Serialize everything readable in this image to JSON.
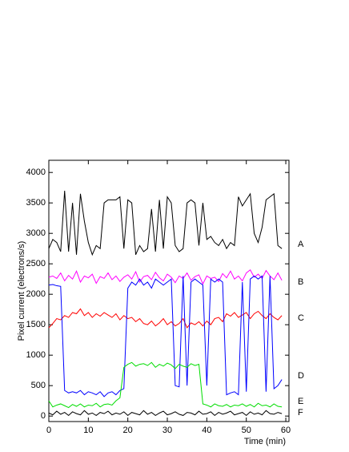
{
  "chart_data": {
    "type": "line",
    "x_label": "Time (min)",
    "y_label": "Pixel current (electrons/s)",
    "x": [
      0,
      1,
      2,
      3,
      4,
      5,
      6,
      7,
      8,
      9,
      10,
      11,
      12,
      13,
      14,
      15,
      16,
      17,
      18,
      19,
      20,
      21,
      22,
      23,
      24,
      25,
      26,
      27,
      28,
      29,
      30,
      31,
      32,
      33,
      34,
      35,
      36,
      37,
      38,
      39,
      40,
      41,
      42,
      43,
      44,
      45,
      46,
      47,
      48,
      49,
      50,
      51,
      52,
      53,
      54,
      55,
      56,
      57,
      58,
      59
    ],
    "xlim": [
      0,
      60.8
    ],
    "xticks": [
      0,
      10,
      20,
      30,
      40,
      50,
      60
    ],
    "ylim": [
      -90,
      4200
    ],
    "yticks": [
      0,
      500,
      1000,
      1500,
      2000,
      2500,
      3000,
      3500,
      4000
    ],
    "series": [
      {
        "name": "A",
        "color": "#000000",
        "values": [
          2750,
          2900,
          2850,
          2700,
          3700,
          2700,
          3500,
          2650,
          3650,
          3200,
          2850,
          2650,
          2800,
          2750,
          3500,
          3550,
          3550,
          3550,
          3600,
          2750,
          3550,
          3500,
          2650,
          2800,
          2700,
          2750,
          3400,
          2700,
          3550,
          2750,
          3600,
          3500,
          2800,
          2700,
          2750,
          3500,
          3550,
          3500,
          2800,
          3500,
          2900,
          2950,
          2850,
          2800,
          2900,
          2750,
          2850,
          2800,
          3600,
          3450,
          3550,
          3650,
          3000,
          2850,
          3100,
          3550,
          3600,
          3650,
          2800,
          2750
        ]
      },
      {
        "name": "B",
        "color": "#ff00ff",
        "values": [
          2280,
          2300,
          2260,
          2350,
          2220,
          2310,
          2250,
          2380,
          2200,
          2300,
          2270,
          2330,
          2180,
          2290,
          2260,
          2350,
          2240,
          2300,
          2210,
          2280,
          2320,
          2250,
          2370,
          2200,
          2290,
          2310,
          2240,
          2360,
          2270,
          2220,
          2330,
          2280,
          2190,
          2300,
          2260,
          2350,
          2230,
          2290,
          2320,
          2170,
          2300,
          2260,
          2280,
          2210,
          2340,
          2270,
          2380,
          2250,
          2300,
          2220,
          2350,
          2400,
          2280,
          2330,
          2260,
          2390,
          2300,
          2240,
          2350,
          2230
        ]
      },
      {
        "name": "C",
        "color": "#ff0000",
        "values": [
          1450,
          1520,
          1600,
          1580,
          1650,
          1620,
          1700,
          1680,
          1760,
          1650,
          1700,
          1620,
          1680,
          1640,
          1700,
          1660,
          1620,
          1680,
          1580,
          1650,
          1600,
          1620,
          1550,
          1600,
          1520,
          1500,
          1560,
          1480,
          1530,
          1600,
          1500,
          1550,
          1480,
          1520,
          1600,
          1450,
          1530,
          1500,
          1550,
          1480,
          1560,
          1500,
          1600,
          1620,
          1550,
          1680,
          1640,
          1700,
          1620,
          1660,
          1700,
          1600,
          1680,
          1720,
          1650,
          1600,
          1680,
          1620,
          1580,
          1650
        ]
      },
      {
        "name": "D",
        "color": "#0000ff",
        "values": [
          2150,
          2160,
          2140,
          2130,
          420,
          380,
          400,
          380,
          420,
          350,
          400,
          380,
          350,
          400,
          320,
          380,
          400,
          350,
          420,
          450,
          2100,
          2200,
          2150,
          2250,
          2150,
          2200,
          2100,
          2250,
          2200,
          2150,
          2200,
          2250,
          500,
          480,
          2300,
          500,
          2200,
          2250,
          2200,
          2150,
          500,
          2250,
          2200,
          2250,
          2200,
          350,
          380,
          400,
          350,
          2200,
          400,
          2250,
          2300,
          2250,
          2300,
          400,
          2300,
          450,
          500,
          600
        ]
      },
      {
        "name": "E",
        "color": "#00dd00",
        "values": [
          250,
          150,
          180,
          200,
          170,
          140,
          190,
          160,
          200,
          150,
          180,
          170,
          210,
          150,
          190,
          200,
          180,
          250,
          300,
          800,
          850,
          880,
          820,
          850,
          860,
          830,
          880,
          800,
          850,
          820,
          870,
          840,
          780,
          850,
          820,
          800,
          860,
          830,
          850,
          200,
          180,
          150,
          200,
          170,
          160,
          190,
          150,
          180,
          170,
          200,
          160,
          190,
          150,
          210,
          170,
          180,
          150,
          200,
          160,
          150
        ]
      },
      {
        "name": "F",
        "color": "#000000",
        "values": [
          50,
          20,
          80,
          30,
          60,
          10,
          70,
          40,
          20,
          90,
          30,
          50,
          10,
          60,
          40,
          80,
          20,
          50,
          30,
          70,
          10,
          60,
          40,
          20,
          90,
          30,
          60,
          10,
          50,
          80,
          20,
          40,
          70,
          30,
          10,
          60,
          50,
          20,
          80,
          30,
          40,
          70,
          10,
          60,
          30,
          50,
          80,
          20,
          40,
          60,
          10,
          70,
          30,
          50,
          20,
          90,
          40,
          30,
          60,
          40
        ]
      }
    ]
  }
}
